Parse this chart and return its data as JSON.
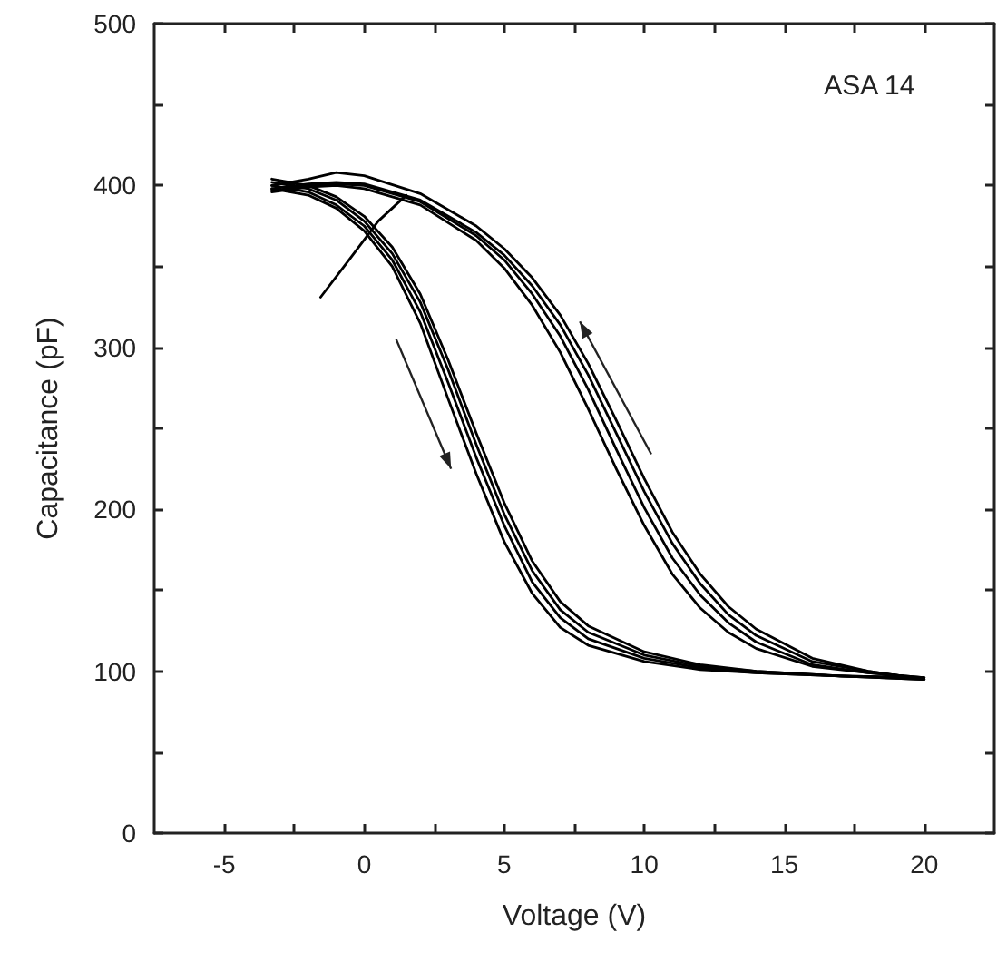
{
  "chart_data": {
    "type": "line",
    "xlabel": "Voltage (V)",
    "ylabel": "Capacitance (pF)",
    "annotations": [
      "ASA 14"
    ],
    "xlim": [
      -7.5,
      22.5
    ],
    "xticks": [
      -5,
      {
        "value": -2.5,
        "label": null
      },
      0,
      {
        "value": 2.5,
        "label": null
      },
      5,
      {
        "value": 7.5,
        "label": null
      },
      10,
      {
        "value": 12.5,
        "label": null
      },
      15,
      {
        "value": 17.5,
        "label": null
      },
      20
    ],
    "ylim": [
      0,
      500
    ],
    "yticks": [
      0,
      {
        "value": 50,
        "label": null
      },
      100,
      {
        "value": 150,
        "label": null
      },
      200,
      {
        "value": 250,
        "label": null
      },
      300,
      {
        "value": 350,
        "label": null
      },
      400,
      {
        "value": 450,
        "label": null
      },
      500
    ],
    "grid": false,
    "marker": "none",
    "line_style": "solid",
    "series": [
      {
        "color": "#000000",
        "x": [
          -3.3,
          -2,
          -1,
          0,
          1,
          2,
          3,
          4,
          5,
          6,
          7,
          8,
          10,
          12,
          14,
          17,
          20,
          18,
          16,
          14,
          13,
          12,
          11,
          10,
          9,
          8,
          7,
          6,
          5,
          4,
          2,
          0,
          -1,
          -2,
          -3.3
        ],
        "values": [
          398,
          394,
          386,
          372,
          350,
          315,
          268,
          222,
          180,
          148,
          127,
          116,
          106,
          101,
          99,
          97,
          96,
          99,
          103,
          114,
          124,
          139,
          160,
          190,
          225,
          262,
          297,
          326,
          349,
          366,
          388,
          398,
          400,
          399,
          396
        ]
      },
      {
        "color": "#000000",
        "x": [
          -3.3,
          -2,
          -1,
          0,
          1,
          2,
          3,
          4,
          5,
          6,
          7,
          8,
          10,
          12,
          14,
          17,
          20,
          18,
          16,
          14,
          13,
          12,
          11,
          10,
          9,
          8,
          7,
          6,
          5,
          4,
          2,
          0,
          -1,
          -2,
          -3.3
        ],
        "values": [
          400,
          396,
          388,
          375,
          354,
          322,
          278,
          232,
          190,
          155,
          133,
          120,
          108,
          102,
          99,
          97,
          96,
          99,
          104,
          118,
          130,
          147,
          170,
          201,
          237,
          274,
          307,
          333,
          354,
          369,
          390,
          400,
          401,
          400,
          397
        ]
      },
      {
        "color": "#000000",
        "x": [
          -3.3,
          -2,
          -1,
          0,
          1,
          2,
          3,
          4,
          5,
          6,
          7,
          8,
          10,
          12,
          14,
          17,
          20,
          18,
          16,
          14,
          13,
          12,
          11,
          10,
          9,
          8,
          7,
          6,
          5,
          4,
          2,
          0,
          -1,
          -2,
          -3.3
        ],
        "values": [
          402,
          398,
          391,
          378,
          358,
          328,
          286,
          240,
          197,
          162,
          138,
          124,
          110,
          103,
          100,
          97,
          95,
          100,
          106,
          122,
          135,
          154,
          179,
          211,
          247,
          283,
          314,
          338,
          357,
          371,
          391,
          401,
          402,
          401,
          398
        ]
      },
      {
        "color": "#000000",
        "x": [
          -3.3,
          -2,
          -1,
          0,
          1,
          2,
          3,
          4,
          5,
          6,
          7,
          8,
          10,
          12,
          14,
          17,
          20,
          18,
          16,
          14,
          13,
          12,
          11,
          10,
          9,
          8,
          7,
          6,
          5,
          4,
          2,
          0,
          -1,
          -2,
          -3.3
        ],
        "values": [
          404,
          400,
          393,
          381,
          362,
          333,
          292,
          247,
          204,
          168,
          143,
          128,
          112,
          104,
          100,
          97,
          95,
          100,
          108,
          126,
          140,
          160,
          186,
          219,
          255,
          290,
          320,
          343,
          361,
          375,
          395,
          406,
          408,
          404,
          400
        ]
      },
      {
        "color": "#000000",
        "x": [
          -1.56,
          -0.5,
          0.5,
          1.5
        ],
        "values": [
          331,
          355,
          378,
          394
        ]
      }
    ]
  }
}
